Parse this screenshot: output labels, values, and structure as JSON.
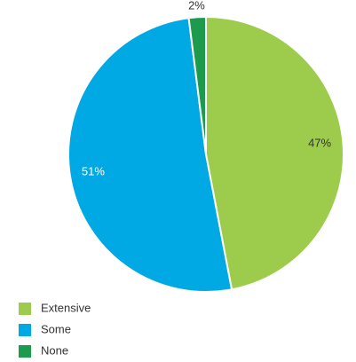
{
  "chart_data": {
    "type": "pie",
    "categories": [
      "Extensive",
      "Some",
      "None"
    ],
    "values": [
      47,
      51,
      2
    ],
    "value_labels": [
      "47%",
      "51%",
      "2%"
    ],
    "colors": [
      "#9dcb4b",
      "#00a9e4",
      "#1c9b4c"
    ]
  }
}
